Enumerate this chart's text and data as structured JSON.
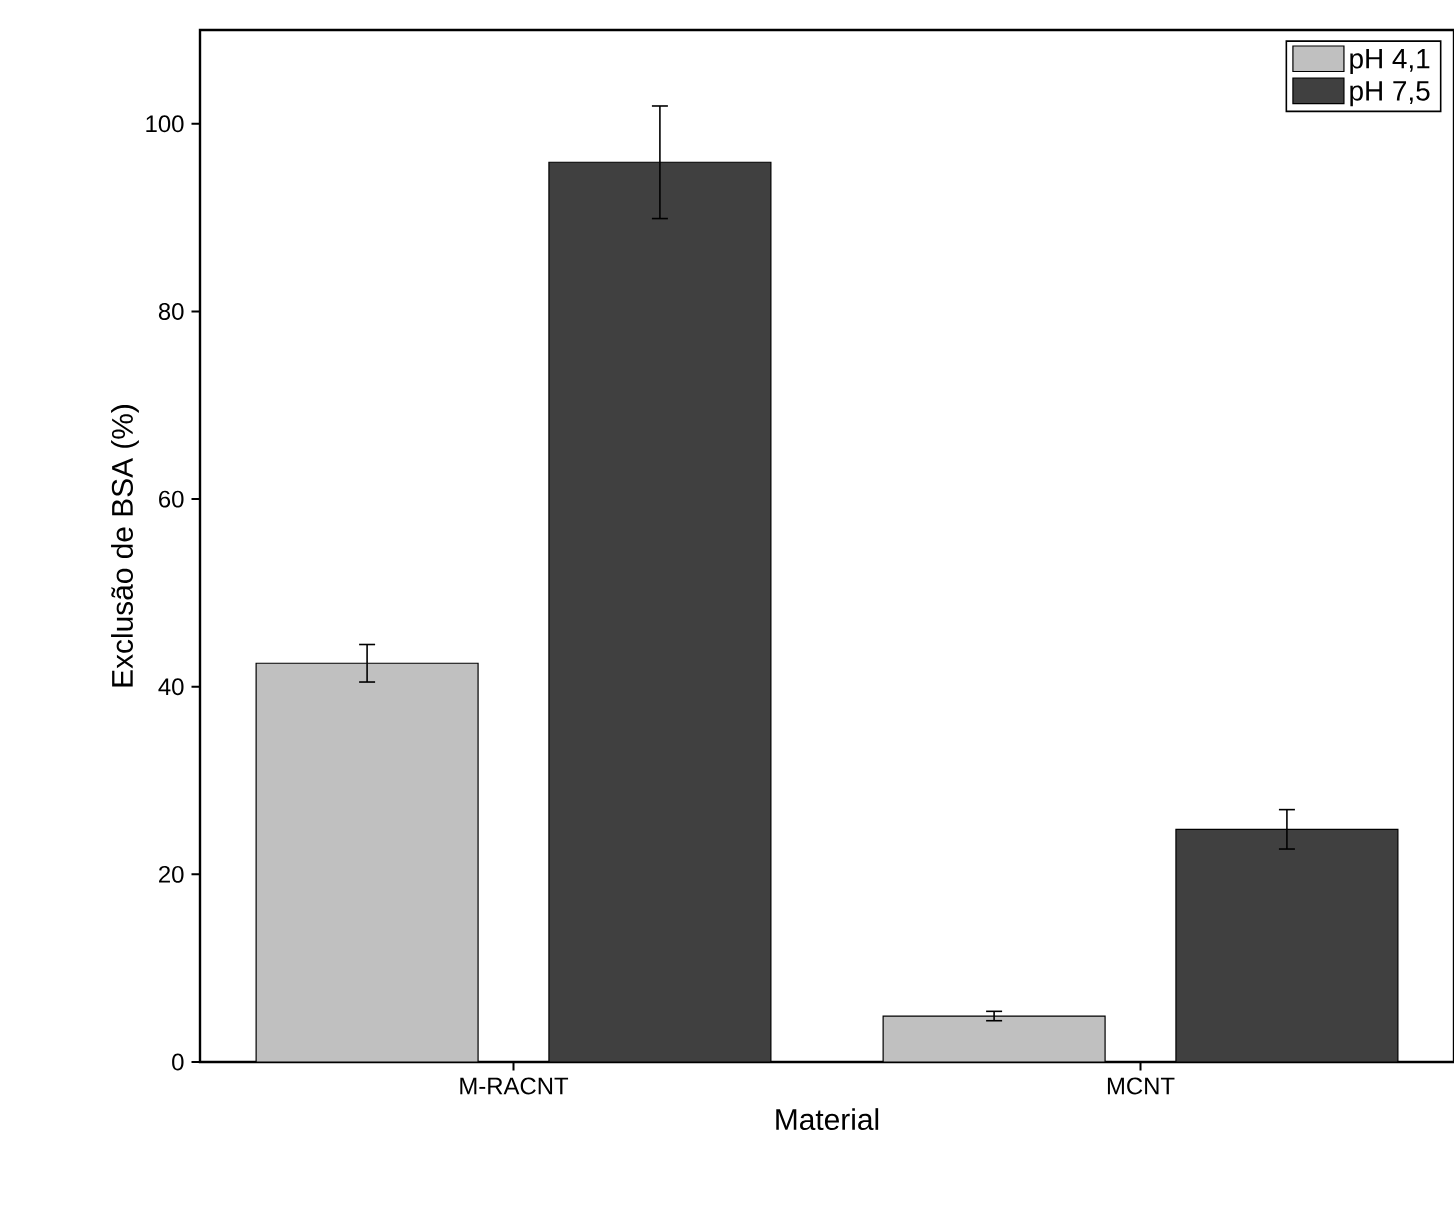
{
  "chart_data": {
    "type": "bar",
    "xlabel": "Material",
    "ylabel": "Exclusão de BSA (%)",
    "categories": [
      "M-RACNT",
      "MCNT"
    ],
    "series": [
      {
        "name": "pH 4,1",
        "color": "#c0c0c0",
        "values": [
          42.5,
          4.9
        ],
        "errors": [
          2,
          0.5
        ]
      },
      {
        "name": "pH 7,5",
        "color": "#404040",
        "values": [
          95.9,
          24.8
        ],
        "errors": [
          6,
          2.1
        ]
      }
    ],
    "ylim": [
      0,
      110
    ],
    "yticks": [
      0,
      20,
      40,
      60,
      80,
      100
    ],
    "grid": false,
    "legend": "top right"
  }
}
